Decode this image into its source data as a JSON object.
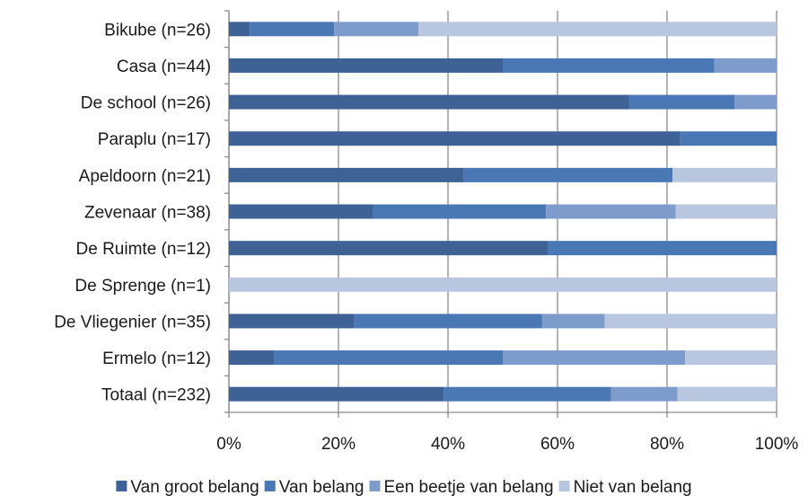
{
  "chart_data": {
    "type": "bar",
    "orientation": "horizontal",
    "stacked": true,
    "percent_stacked": true,
    "title": "",
    "xlabel": "",
    "ylabel": "",
    "categories": [
      "Bikube (n=26)",
      "Casa (n=44)",
      "De school (n=26)",
      "Paraplu (n=17)",
      "Apeldoorn (n=21)",
      "Zevenaar (n=38)",
      "De Ruimte (n=12)",
      "De Sprenge (n=1)",
      "De Vliegenier (n=35)",
      "Ermelo (n=12)",
      "Totaal (n=232)"
    ],
    "series": [
      {
        "name": "Van groot belang",
        "color": "#3e6296",
        "values": [
          3.8,
          50.0,
          73.1,
          82.4,
          42.9,
          26.3,
          58.3,
          0.0,
          22.9,
          8.3,
          39.2
        ]
      },
      {
        "name": "Van belang",
        "color": "#4a78b4",
        "values": [
          15.4,
          38.6,
          19.2,
          17.6,
          38.1,
          31.6,
          41.7,
          0.0,
          34.3,
          41.7,
          30.6
        ]
      },
      {
        "name": "Een beetje van belang",
        "color": "#7e9ccb",
        "values": [
          15.4,
          11.4,
          7.7,
          0.0,
          0.0,
          23.7,
          0.0,
          0.0,
          11.4,
          33.3,
          12.1
        ]
      },
      {
        "name": "Niet van belang",
        "color": "#b8c6e0",
        "values": [
          65.4,
          0.0,
          0.0,
          0.0,
          19.0,
          18.4,
          0.0,
          100.0,
          31.4,
          16.7,
          18.1
        ]
      }
    ],
    "xlim": [
      0,
      100
    ],
    "xticks": [
      "0%",
      "20%",
      "40%",
      "60%",
      "80%",
      "100%"
    ],
    "grid": true,
    "legend_position": "bottom"
  }
}
